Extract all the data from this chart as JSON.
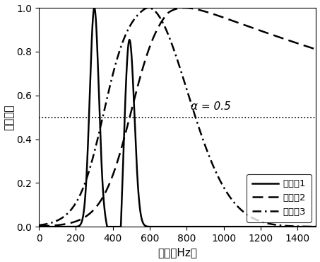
{
  "title": "",
  "xlabel": "频率（Hz）",
  "ylabel": "吸声系数",
  "xlim": [
    0,
    1500
  ],
  "ylim": [
    0.0,
    1.0
  ],
  "xticks": [
    0,
    200,
    400,
    600,
    800,
    1000,
    1200,
    1400
  ],
  "yticks": [
    0.0,
    0.2,
    0.4,
    0.6,
    0.8,
    1.0
  ],
  "alpha_line_y": 0.5,
  "alpha_label": "α = 0.5",
  "legend_labels": [
    "实施例1",
    "实施例2",
    "实施例3"
  ],
  "line_color": "#000000",
  "dotted_line_color": "#000000",
  "background_color": "#ffffff"
}
